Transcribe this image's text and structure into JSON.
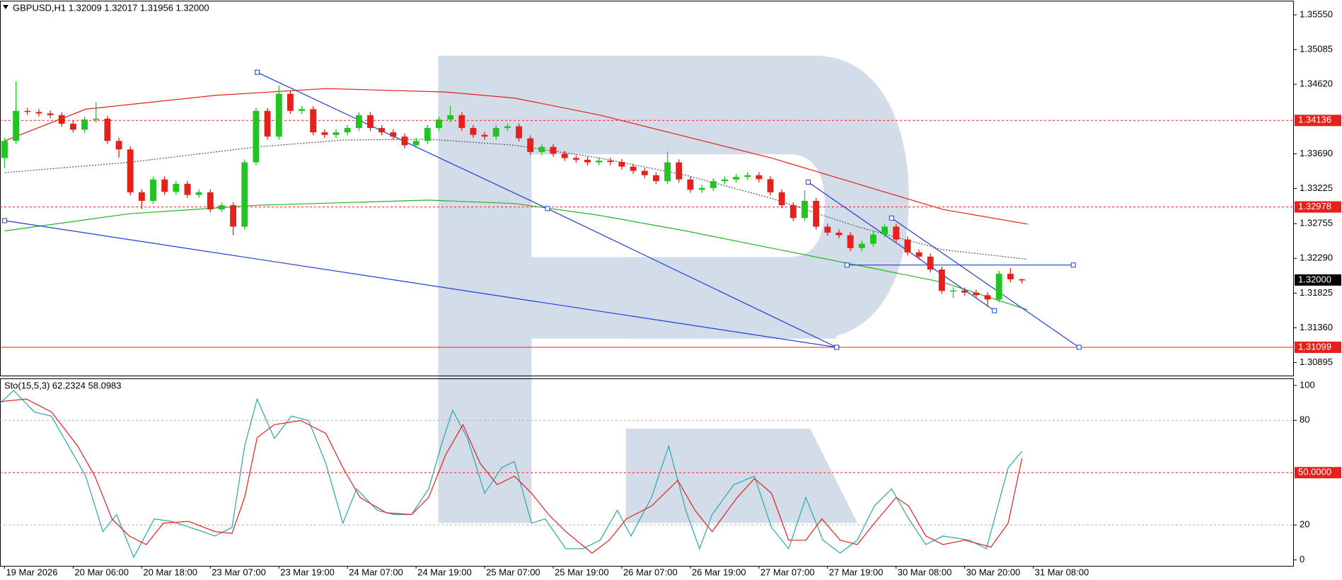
{
  "chart_data": [
    {
      "type": "candlestick",
      "title": "GBPUSD,H1  1.32009 1.32017 1.31956 1.32000",
      "bull_color": "#22c322",
      "bear_color": "#e4211b",
      "open": [
        1.33633,
        1.33862,
        1.34264,
        1.3425,
        1.3423,
        1.34207,
        1.34092,
        1.34012,
        1.34149,
        1.3416,
        1.33862,
        1.33748,
        1.33174,
        1.33059,
        1.33346,
        1.3318,
        1.33288,
        1.33139,
        1.33174,
        1.32944,
        1.33001,
        1.32714,
        1.33575,
        1.34264,
        1.3392,
        1.34494,
        1.34264,
        1.34287,
        1.33977,
        1.33943,
        1.33977,
        1.34035,
        1.34207,
        1.34035,
        1.33977,
        1.3392,
        1.33805,
        1.33862,
        1.34035,
        1.34149,
        1.34207,
        1.34035,
        1.33943,
        1.3392,
        1.34035,
        1.34058,
        1.33897,
        1.33713,
        1.33782,
        1.3369,
        1.33633,
        1.3361,
        1.33575,
        1.33598,
        1.3358,
        1.33518,
        1.33461,
        1.33403,
        1.33323,
        1.33575,
        1.33346,
        1.33208,
        1.33231,
        1.33323,
        1.33346,
        1.3338,
        1.33403,
        1.3335,
        1.33174,
        1.33001,
        1.32829,
        1.33059,
        1.32714,
        1.32634,
        1.326,
        1.32427,
        1.32485,
        1.3261,
        1.32714,
        1.32542,
        1.3237,
        1.32313,
        1.3214,
        1.31853,
        1.3186,
        1.31831,
        1.31796,
        1.31739,
        1.32083,
        1.32009
      ],
      "high": [
        1.33902,
        1.3466,
        1.34304,
        1.3429,
        1.3427,
        1.34247,
        1.34132,
        1.34189,
        1.3438,
        1.342,
        1.33902,
        1.33788,
        1.33214,
        1.33386,
        1.33386,
        1.33328,
        1.33328,
        1.33214,
        1.33214,
        1.33041,
        1.33041,
        1.33615,
        1.34304,
        1.34304,
        1.346,
        1.34534,
        1.34327,
        1.34327,
        1.34017,
        1.34017,
        1.34075,
        1.34247,
        1.34247,
        1.34075,
        1.34017,
        1.3396,
        1.33902,
        1.34075,
        1.34189,
        1.3433,
        1.34247,
        1.34075,
        1.33983,
        1.34075,
        1.34098,
        1.34098,
        1.33937,
        1.33822,
        1.33822,
        1.3373,
        1.33673,
        1.3365,
        1.33638,
        1.33638,
        1.3362,
        1.33558,
        1.33501,
        1.33443,
        1.3372,
        1.33615,
        1.33386,
        1.33271,
        1.33363,
        1.33386,
        1.3342,
        1.33443,
        1.33443,
        1.3339,
        1.33214,
        1.33041,
        1.332,
        1.33099,
        1.32754,
        1.32674,
        1.3264,
        1.32525,
        1.3265,
        1.32754,
        1.32754,
        1.32582,
        1.3241,
        1.32353,
        1.3218,
        1.319,
        1.319,
        1.31871,
        1.31836,
        1.32123,
        1.3216,
        1.32017
      ],
      "low": [
        1.335,
        1.33822,
        1.3421,
        1.3419,
        1.34167,
        1.34052,
        1.33972,
        1.33972,
        1.34109,
        1.33822,
        1.3364,
        1.33134,
        1.3295,
        1.33019,
        1.3314,
        1.3314,
        1.33099,
        1.33099,
        1.32904,
        1.32904,
        1.326,
        1.32674,
        1.33535,
        1.3388,
        1.3388,
        1.34224,
        1.34224,
        1.33937,
        1.33903,
        1.33903,
        1.33937,
        1.33995,
        1.33995,
        1.33937,
        1.3388,
        1.33765,
        1.33765,
        1.33822,
        1.33995,
        1.34109,
        1.33995,
        1.33903,
        1.3388,
        1.3388,
        1.33995,
        1.33857,
        1.33673,
        1.33673,
        1.3365,
        1.33593,
        1.3357,
        1.33535,
        1.33535,
        1.33535,
        1.33478,
        1.33421,
        1.33363,
        1.33283,
        1.33283,
        1.33306,
        1.33168,
        1.33168,
        1.33191,
        1.33283,
        1.33306,
        1.3334,
        1.3331,
        1.33134,
        1.32961,
        1.32789,
        1.32789,
        1.32674,
        1.32594,
        1.3256,
        1.32387,
        1.32387,
        1.32445,
        1.3257,
        1.32502,
        1.3233,
        1.32273,
        1.321,
        1.31813,
        1.3176,
        1.31791,
        1.31756,
        1.3164,
        1.31699,
        1.3197,
        1.31956
      ],
      "close": [
        1.33862,
        1.34264,
        1.3425,
        1.3423,
        1.34207,
        1.34092,
        1.34012,
        1.34149,
        1.3416,
        1.33862,
        1.33748,
        1.33174,
        1.33059,
        1.33346,
        1.3318,
        1.33288,
        1.33139,
        1.33174,
        1.32944,
        1.33001,
        1.32714,
        1.33575,
        1.34264,
        1.3392,
        1.34494,
        1.34264,
        1.34287,
        1.33977,
        1.33943,
        1.33977,
        1.34035,
        1.34207,
        1.34035,
        1.33977,
        1.3392,
        1.33805,
        1.33862,
        1.34035,
        1.34149,
        1.34207,
        1.34035,
        1.33943,
        1.3392,
        1.34035,
        1.34058,
        1.33897,
        1.33713,
        1.33782,
        1.3369,
        1.33633,
        1.3361,
        1.33575,
        1.33598,
        1.3358,
        1.33518,
        1.33461,
        1.33403,
        1.33323,
        1.33575,
        1.33346,
        1.33208,
        1.33231,
        1.33323,
        1.33346,
        1.3338,
        1.33403,
        1.3335,
        1.33174,
        1.33001,
        1.32829,
        1.33059,
        1.32714,
        1.32634,
        1.326,
        1.32427,
        1.32485,
        1.3261,
        1.32714,
        1.32542,
        1.3237,
        1.32313,
        1.3214,
        1.31853,
        1.3186,
        1.31831,
        1.31796,
        1.31739,
        1.32083,
        1.32009,
        1.32
      ],
      "overlays": [
        {
          "color": "#e4211b",
          "dash": "none",
          "x": [
            0,
            7.1,
            18.4,
            28.1,
            38.6,
            44.6,
            52.1,
            59.6,
            67.1,
            74.6,
            82.1,
            89.5
          ],
          "values": [
            1.33862,
            1.34287,
            1.34471,
            1.34563,
            1.34517,
            1.34436,
            1.34207,
            1.3392,
            1.33633,
            1.33288,
            1.32944,
            1.32749
          ]
        },
        {
          "color": "#22b422",
          "dash": "none",
          "x": [
            0,
            10.9,
            22.1,
            37.1,
            44.6,
            52.1,
            59.6,
            67.1,
            74.6,
            82.1,
            89.5
          ],
          "values": [
            1.32657,
            1.32887,
            1.33001,
            1.3307,
            1.33024,
            1.32864,
            1.32657,
            1.32427,
            1.32198,
            1.31968,
            1.31601
          ]
        },
        {
          "color": "#555555",
          "dash": "2,2",
          "x": [
            0,
            10.9,
            22.1,
            29.6,
            37.1,
            44.6,
            52.1,
            59.6,
            67.1,
            74.6,
            82.1,
            89.5
          ],
          "values": [
            1.33438,
            1.33575,
            1.33782,
            1.33874,
            1.33885,
            1.33805,
            1.33633,
            1.33403,
            1.33093,
            1.32714,
            1.32405,
            1.32278
          ]
        }
      ],
      "trendlines": [
        {
          "color": "#1f3fd8",
          "x": [
            0,
            72.8
          ],
          "values": [
            1.32795,
            1.31099
          ]
        },
        {
          "color": "#1f3fd8",
          "x": [
            22.1,
            47.5,
            72.8
          ],
          "values": [
            1.34781,
            1.32956,
            1.31099
          ]
        },
        {
          "color": "#1f3fd8",
          "x": [
            70.3,
            86.6
          ],
          "values": [
            1.33311,
            1.31589
          ]
        },
        {
          "color": "#1f3fd8",
          "x": [
            77.6,
            94
          ],
          "values": [
            1.32829,
            1.31099
          ]
        },
        {
          "color": "#1f3fd8",
          "x": [
            73.7,
            93.5
          ],
          "values": [
            1.322,
            1.322
          ]
        }
      ],
      "levels": [
        {
          "value": 1.34136,
          "color": "#e4211b",
          "dash": "3,3"
        },
        {
          "value": 1.32978,
          "color": "#e4211b",
          "dash": "3,3"
        },
        {
          "value": 1.32,
          "label": "1.32000",
          "color": "#000000",
          "dash": "none",
          "line": false
        },
        {
          "value": 1.31099,
          "color": "#e4211b",
          "dash": "none"
        }
      ],
      "xlim": [
        -0.4,
        112.8
      ],
      "ylim": [
        1.3072,
        1.3573
      ],
      "yticks": [
        {
          "value": 1.3555,
          "label": "1.35550"
        },
        1.35085,
        {
          "value": 1.3462,
          "label": "1.34620"
        },
        {
          "value": 1.3369,
          "label": "1.33690"
        },
        1.33225,
        1.32755,
        {
          "value": 1.3229,
          "label": "1.32290"
        },
        1.31825,
        {
          "value": 1.3136,
          "label": "1.31360"
        },
        1.30895
      ]
    },
    {
      "type": "line",
      "title": "Sto(15,5,3) 62.2324 58.0983",
      "series": [
        {
          "color": "#2aa7a7",
          "x": [
            -0.4,
            0.8,
            2.6,
            4.1,
            5.6,
            7.1,
            8.6,
            9.8,
            11.3,
            13.1,
            14.6,
            16.9,
            18.4,
            19.9,
            21.0,
            22.1,
            23.6,
            25.1,
            26.6,
            28.1,
            29.6,
            30.8,
            32.6,
            34.1,
            35.6,
            37.1,
            38.3,
            39.2,
            40.5,
            42.0,
            43.5,
            44.6,
            46.1,
            47.3,
            49.1,
            50.6,
            52.1,
            53.6,
            54.8,
            56.6,
            58.1,
            59.6,
            60.8,
            61.9,
            63.8,
            65.6,
            67.1,
            68.6,
            70.1,
            71.6,
            73.1,
            74.6,
            76.1,
            77.6,
            79.1,
            80.6,
            82.1,
            84.4,
            85.9,
            87.8,
            89
          ],
          "values": [
            89.7,
            97.1,
            84.8,
            82.4,
            65.2,
            48.0,
            16.2,
            26.0,
            1.5,
            23.5,
            22.1,
            17.2,
            13.7,
            18.6,
            65.2,
            92.2,
            69.6,
            82.4,
            79.9,
            55.4,
            21.1,
            40.7,
            28.4,
            26.0,
            26.0,
            40.7,
            67.6,
            85.8,
            69.6,
            38.2,
            52.9,
            56.4,
            21.1,
            23.5,
            6.4,
            6.4,
            11.3,
            28.4,
            13.7,
            35.8,
            65.2,
            28.4,
            6.4,
            26.0,
            43.1,
            48.0,
            18.6,
            6.4,
            35.8,
            11.3,
            3.9,
            11.3,
            30.9,
            40.7,
            23.5,
            8.8,
            13.7,
            11.3,
            6.4,
            52.9,
            62.2324
          ]
        },
        {
          "color": "#e4211b",
          "x": [
            -0.4,
            1.9,
            4.1,
            6.4,
            7.9,
            9.4,
            10.9,
            12.4,
            13.9,
            16.1,
            18.4,
            19.9,
            21.0,
            22.1,
            23.6,
            25.9,
            28.1,
            29.6,
            31.1,
            33.4,
            35.6,
            37.1,
            38.6,
            40.1,
            41.6,
            43.1,
            44.6,
            46.1,
            47.6,
            49.1,
            51.4,
            52.9,
            54.4,
            56.6,
            58.9,
            60.4,
            61.9,
            64.1,
            65.6,
            67.1,
            68.6,
            70.1,
            71.5,
            73.1,
            74.6,
            76.1,
            78.0,
            79.1,
            80.6,
            82.1,
            84.0,
            86.3,
            87.8,
            89
          ],
          "values": [
            90.7,
            92.2,
            84.8,
            65.2,
            48.0,
            23.5,
            13.7,
            8.8,
            21.1,
            22.1,
            16.2,
            15.2,
            35.8,
            70.1,
            77.5,
            79.9,
            72.5,
            52.9,
            35.8,
            27.0,
            26.0,
            35.8,
            60.3,
            77.5,
            55.4,
            43.1,
            48.0,
            38.2,
            26.0,
            16.2,
            3.9,
            11.3,
            23.5,
            30.9,
            45.6,
            28.4,
            16.2,
            35.8,
            46.6,
            38.2,
            11.3,
            11.3,
            23.5,
            11.3,
            8.8,
            21.1,
            35.8,
            30.9,
            13.7,
            8.8,
            11.3,
            7.4,
            21.1,
            58.0983
          ]
        }
      ],
      "levels": [
        {
          "value": 80,
          "color": "#b0b0b0",
          "dash": "3,3"
        },
        {
          "value": 50,
          "label": "50.0000",
          "color": "#e4211b",
          "dash": "3,3"
        },
        {
          "value": 20,
          "color": "#b0b0b0",
          "dash": "3,3"
        }
      ],
      "xlim": [
        -0.4,
        112.8
      ],
      "xticks": [
        {
          "value": 0,
          "label": "19 Mar 2026"
        },
        {
          "value": 6,
          "label": "20 Mar 06:00"
        },
        {
          "value": 12,
          "label": "20 Mar 18:00"
        },
        {
          "value": 18,
          "label": "23 Mar 07:00"
        },
        {
          "value": 24,
          "label": "23 Mar 19:00"
        },
        {
          "value": 30,
          "label": "24 Mar 07:00"
        },
        {
          "value": 36,
          "label": "24 Mar 19:00"
        },
        {
          "value": 42,
          "label": "25 Mar 07:00"
        },
        {
          "value": 48,
          "label": "25 Mar 19:00"
        },
        {
          "value": 54,
          "label": "26 Mar 07:00"
        },
        {
          "value": 60,
          "label": "26 Mar 19:00"
        },
        {
          "value": 66,
          "label": "27 Mar 07:00"
        },
        {
          "value": 72,
          "label": "27 Mar 19:00"
        },
        {
          "value": 78,
          "label": "30 Mar 08:00"
        },
        {
          "value": 84,
          "label": "30 Mar 20:00"
        },
        {
          "value": 90,
          "label": "31 Mar 08:00"
        }
      ],
      "ylim": [
        -3.4,
        103.6
      ],
      "yticks": [
        0,
        20,
        80,
        100
      ]
    }
  ]
}
